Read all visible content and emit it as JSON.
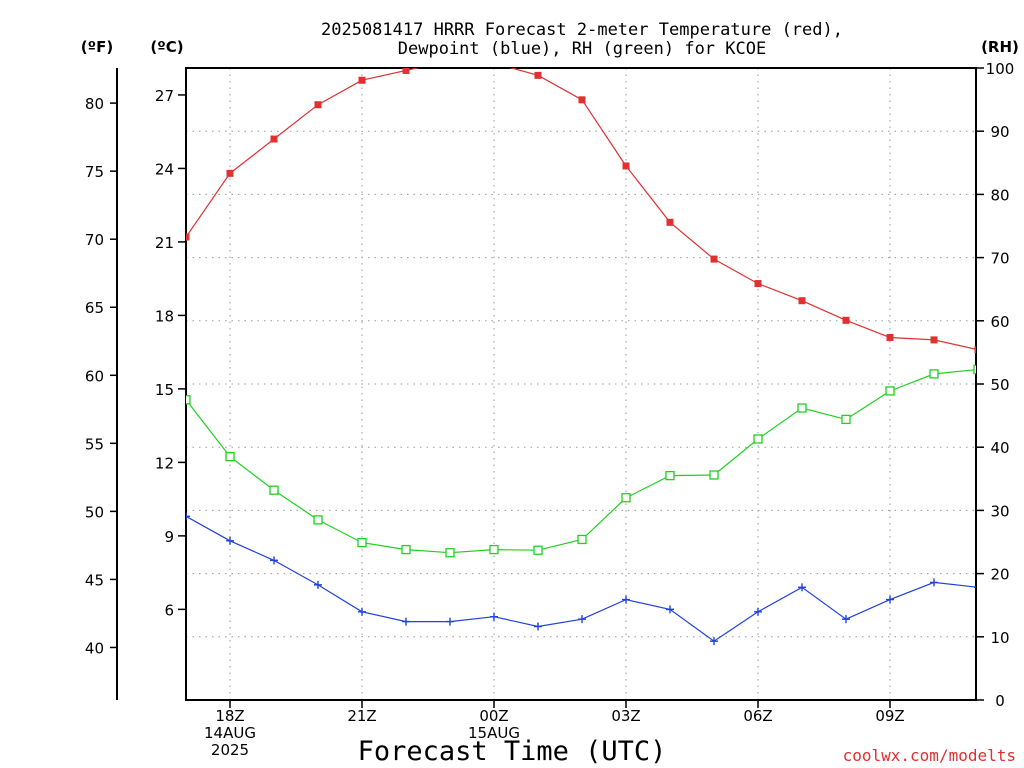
{
  "title_lines": [
    "2025081417 HRRR Forecast 2-meter Temperature (red),",
    "Dewpoint (blue), RH (green) for KCOE"
  ],
  "units": {
    "f": "(ºF)",
    "c": "(ºC)",
    "rh": "(RH)"
  },
  "xlabel": "Forecast Time (UTC)",
  "credit": "coolwx.com/modelts",
  "colors": {
    "temp": "#e03030",
    "dew": "#2040e0",
    "rh": "#20d020",
    "grid": "#9a9a9a"
  },
  "chart_data": {
    "type": "line",
    "x": [
      "17Z",
      "18Z",
      "19Z",
      "20Z",
      "21Z",
      "22Z",
      "23Z",
      "00Z",
      "01Z",
      "02Z",
      "03Z",
      "04Z",
      "05Z",
      "06Z",
      "07Z",
      "08Z",
      "09Z",
      "10Z",
      "11Z"
    ],
    "x_tick_labels": [
      {
        "index": 1,
        "lines": [
          "18Z",
          "14AUG",
          "2025"
        ]
      },
      {
        "index": 4,
        "lines": [
          "21Z"
        ]
      },
      {
        "index": 7,
        "lines": [
          "00Z",
          "15AUG"
        ]
      },
      {
        "index": 10,
        "lines": [
          "03Z"
        ]
      },
      {
        "index": 13,
        "lines": [
          "06Z"
        ]
      },
      {
        "index": 16,
        "lines": [
          "09Z"
        ]
      }
    ],
    "temp_axis": {
      "unit": "°C",
      "range": [
        2.3,
        28.1
      ],
      "ticks": [
        6,
        9,
        12,
        15,
        18,
        21,
        24,
        27
      ]
    },
    "temp_f_axis": {
      "unit": "°F",
      "ticks": [
        40,
        45,
        50,
        55,
        60,
        65,
        70,
        75,
        80
      ]
    },
    "rh_axis": {
      "range": [
        0,
        100
      ],
      "ticks": [
        0,
        10,
        20,
        30,
        40,
        50,
        60,
        70,
        80,
        90,
        100
      ]
    },
    "grid": true,
    "series": [
      {
        "name": "Temperature (red)",
        "axis": "temp",
        "marker": "filled-square",
        "values": [
          21.2,
          23.8,
          25.2,
          26.6,
          27.6,
          28.0,
          28.4,
          28.3,
          27.8,
          26.8,
          24.1,
          21.8,
          20.3,
          19.3,
          18.6,
          17.8,
          17.1,
          17.0,
          16.6
        ]
      },
      {
        "name": "Dewpoint (blue)",
        "axis": "temp",
        "marker": "plus",
        "values": [
          9.8,
          8.8,
          8.0,
          7.0,
          5.9,
          5.5,
          5.5,
          5.7,
          5.3,
          5.6,
          6.4,
          6.0,
          4.7,
          5.9,
          6.9,
          5.6,
          6.4,
          7.1,
          6.9
        ]
      },
      {
        "name": "RH (green)",
        "axis": "rh",
        "marker": "open-square",
        "values": [
          47.5,
          38.5,
          33.2,
          28.5,
          24.9,
          23.8,
          23.3,
          23.8,
          23.7,
          25.4,
          32.0,
          35.5,
          35.6,
          41.3,
          46.2,
          44.4,
          48.9,
          51.6,
          52.3
        ]
      }
    ]
  }
}
